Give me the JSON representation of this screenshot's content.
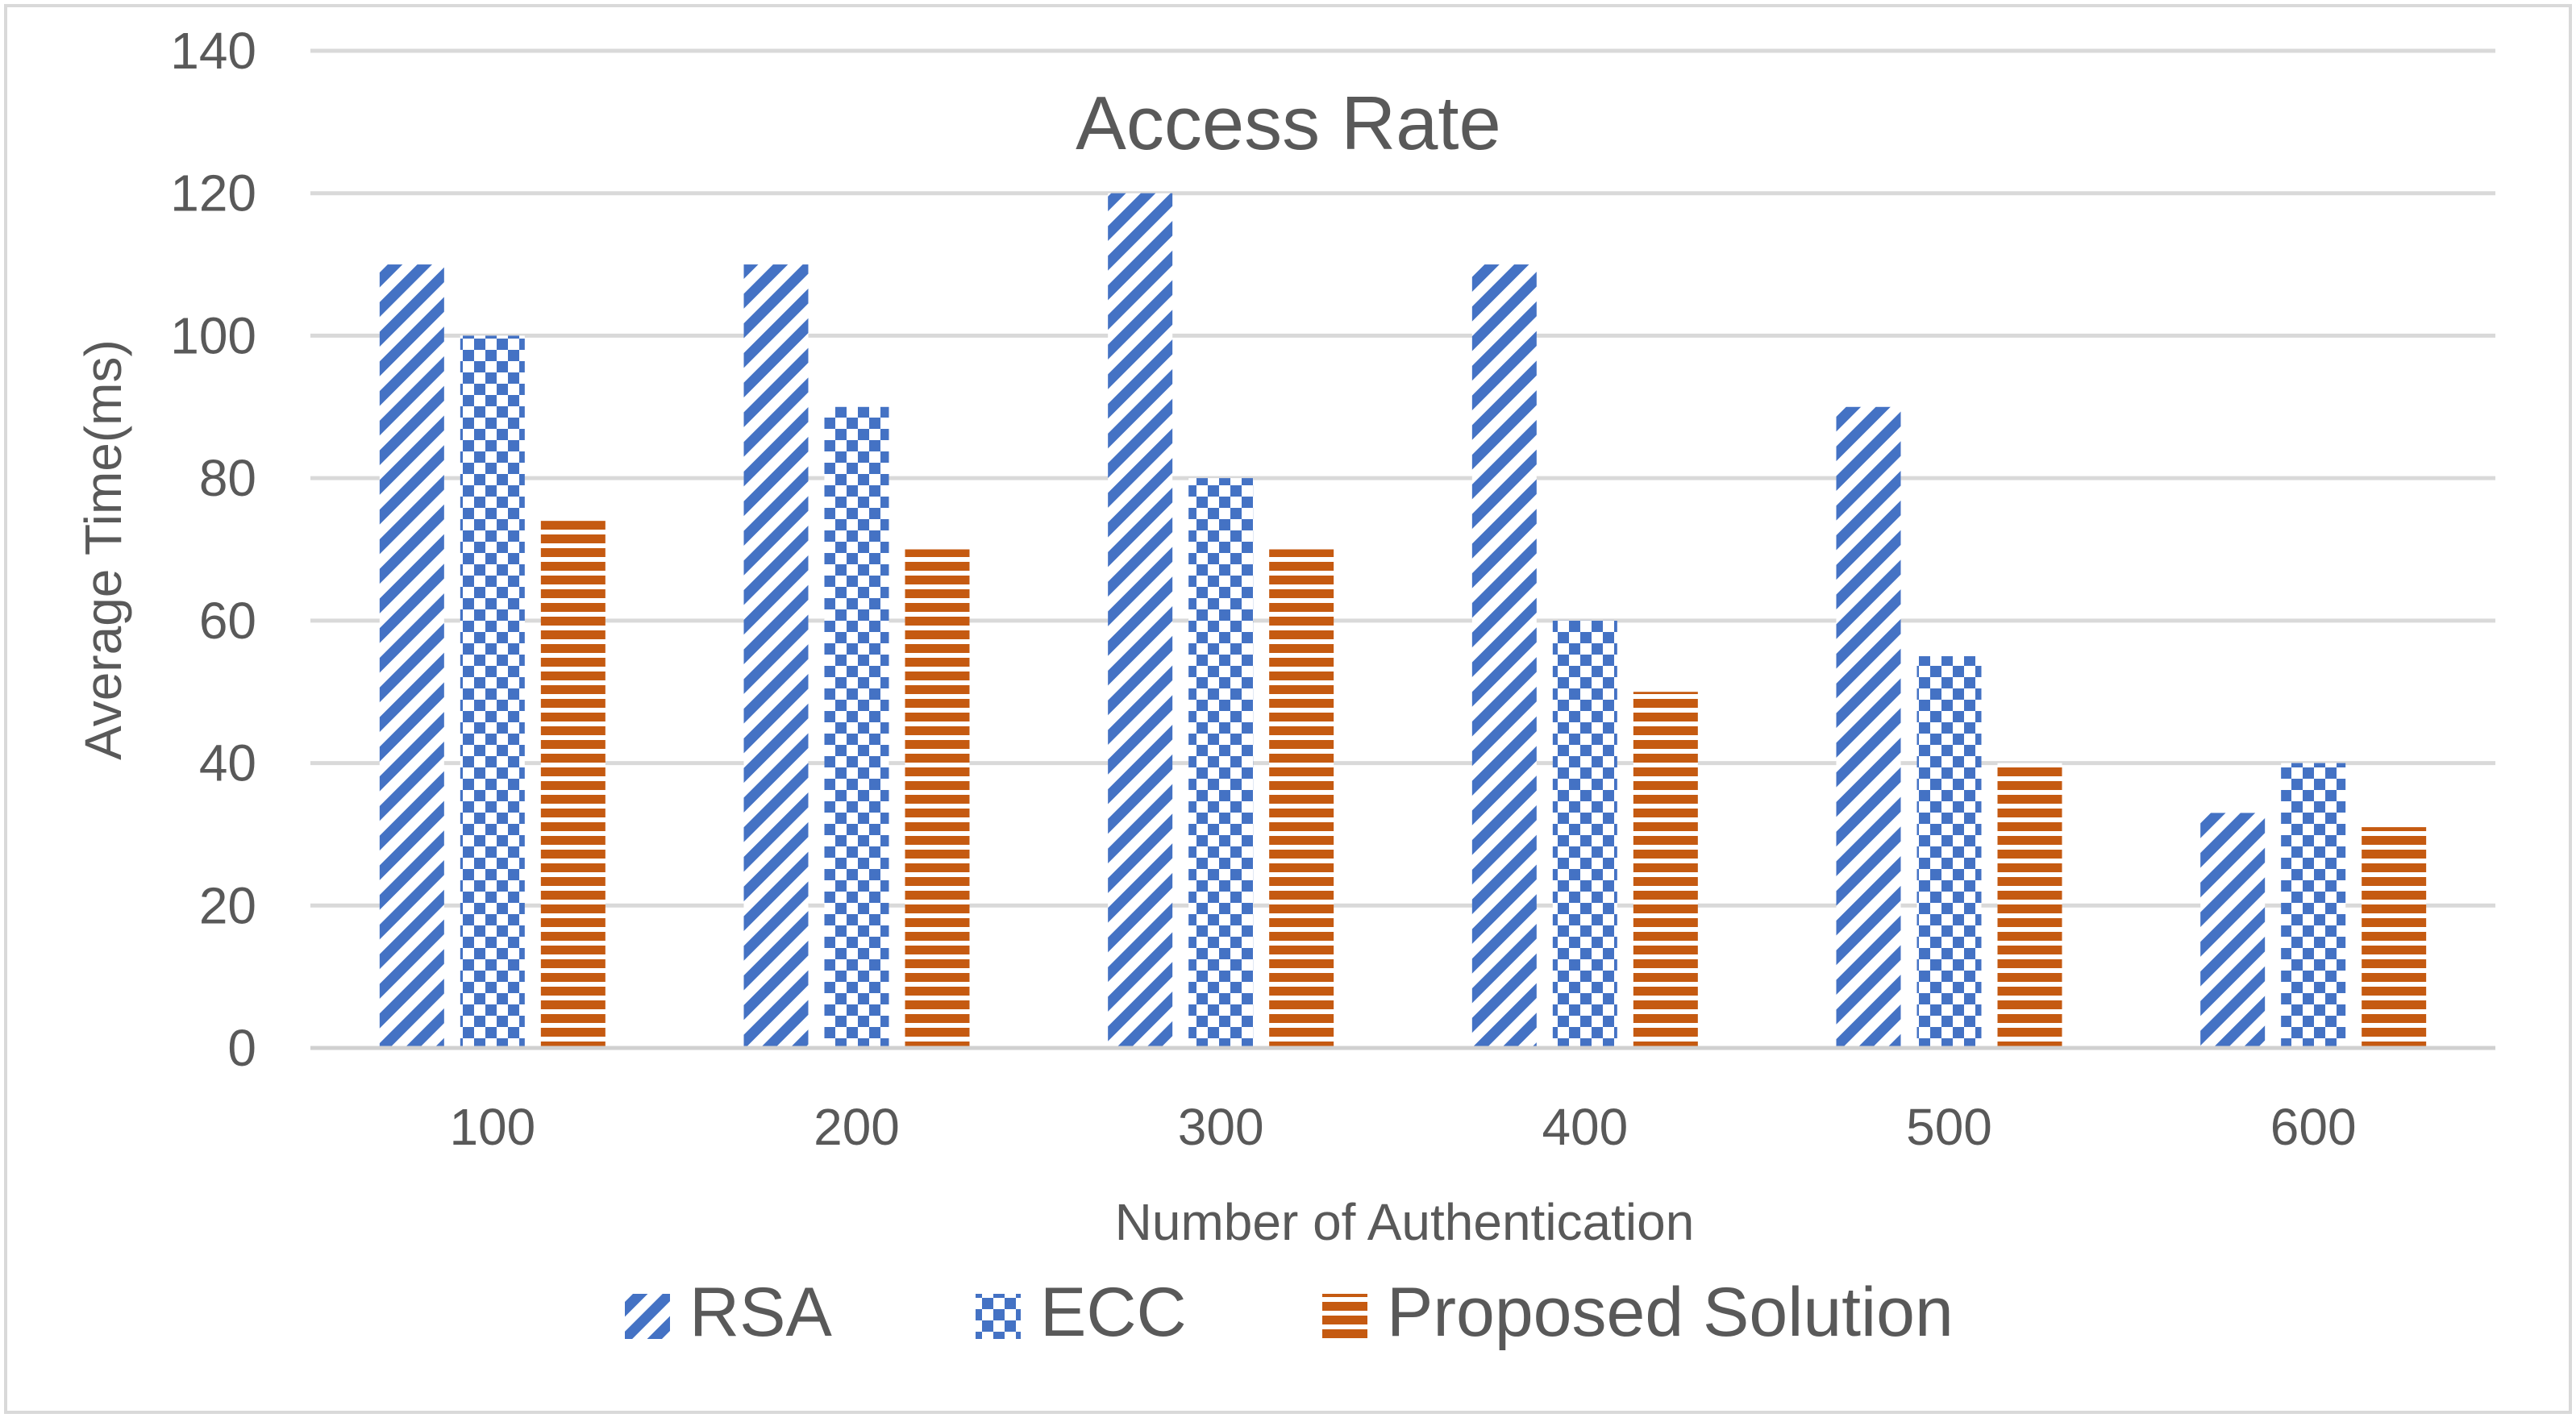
{
  "chart_data": {
    "type": "bar",
    "title": "Access Rate",
    "xlabel": "Number of Authentication",
    "ylabel": "Average Time(ms)",
    "categories": [
      "100",
      "200",
      "300",
      "400",
      "500",
      "600"
    ],
    "ylim": [
      0,
      140
    ],
    "yticks": [
      0,
      20,
      40,
      60,
      80,
      100,
      120,
      140
    ],
    "grid": true,
    "legend_position": "bottom",
    "series": [
      {
        "name": "RSA",
        "pattern": "diagonal-stripes",
        "color": "#4472C4",
        "values": [
          110,
          110,
          120,
          110,
          90,
          33
        ]
      },
      {
        "name": "ECC",
        "pattern": "checkerboard",
        "color": "#4472C4",
        "values": [
          100,
          90,
          80,
          60,
          55,
          40
        ]
      },
      {
        "name": "Proposed Solution",
        "pattern": "horizontal-stripes",
        "color": "#C55A11",
        "values": [
          74,
          70,
          70,
          50,
          40,
          31
        ]
      }
    ]
  }
}
